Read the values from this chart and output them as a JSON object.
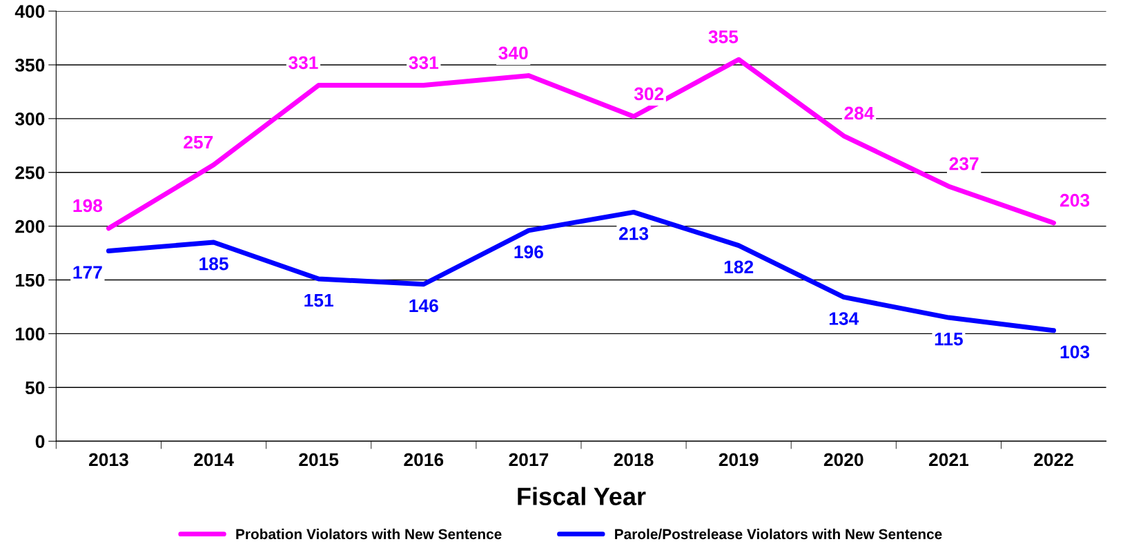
{
  "chart_data": {
    "type": "line",
    "xlabel": "Fiscal Year",
    "categories": [
      "2013",
      "2014",
      "2015",
      "2016",
      "2017",
      "2018",
      "2019",
      "2020",
      "2021",
      "2022"
    ],
    "series": [
      {
        "name": "Probation Violators with New Sentence",
        "color": "#ff00ff",
        "values": [
          198,
          257,
          331,
          331,
          340,
          302,
          355,
          284,
          237,
          203
        ]
      },
      {
        "name": "Parole/Postrelease Violators with New Sentence",
        "color": "#0000ff",
        "values": [
          177,
          185,
          151,
          146,
          196,
          213,
          182,
          134,
          115,
          103
        ]
      }
    ],
    "ylim": [
      0,
      400
    ],
    "yticks": [
      0,
      50,
      100,
      150,
      200,
      250,
      300,
      350,
      400
    ],
    "grid": "y",
    "legend": "bottom",
    "data_labels": true,
    "marker": "none",
    "line_style": "solid"
  }
}
